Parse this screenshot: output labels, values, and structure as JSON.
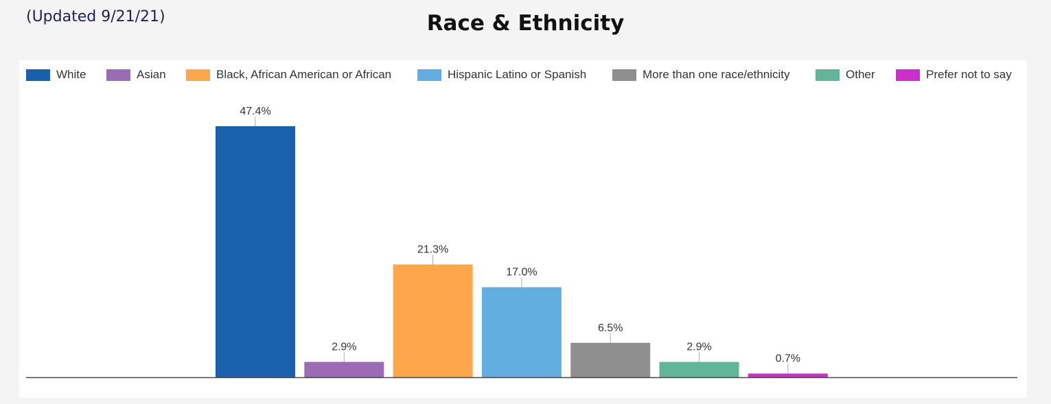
{
  "header": {
    "updated_note": "(Updated 9/21/21)",
    "title": "Race & Ethnicity"
  },
  "chart_data": {
    "type": "bar",
    "title": "Race & Ethnicity",
    "xlabel": "",
    "ylabel": "",
    "ylim": [
      0,
      50
    ],
    "grid": false,
    "legend_position": "top",
    "categories": [
      "White",
      "Asian",
      "Black, African American or African",
      "Hispanic Latino or Spanish",
      "More than one race/ethnicity",
      "Other",
      "Prefer not to say"
    ],
    "values": [
      47.4,
      2.9,
      21.3,
      17.0,
      6.5,
      2.9,
      0.7
    ],
    "data_labels": [
      "47.4%",
      "2.9%",
      "21.3%",
      "17.0%",
      "6.5%",
      "2.9%",
      "0.7%"
    ],
    "colors": [
      "#1a61ad",
      "#9b6bb4",
      "#fda64b",
      "#63aee0",
      "#8f8f8f",
      "#62b598",
      "#cc2fcc"
    ]
  }
}
